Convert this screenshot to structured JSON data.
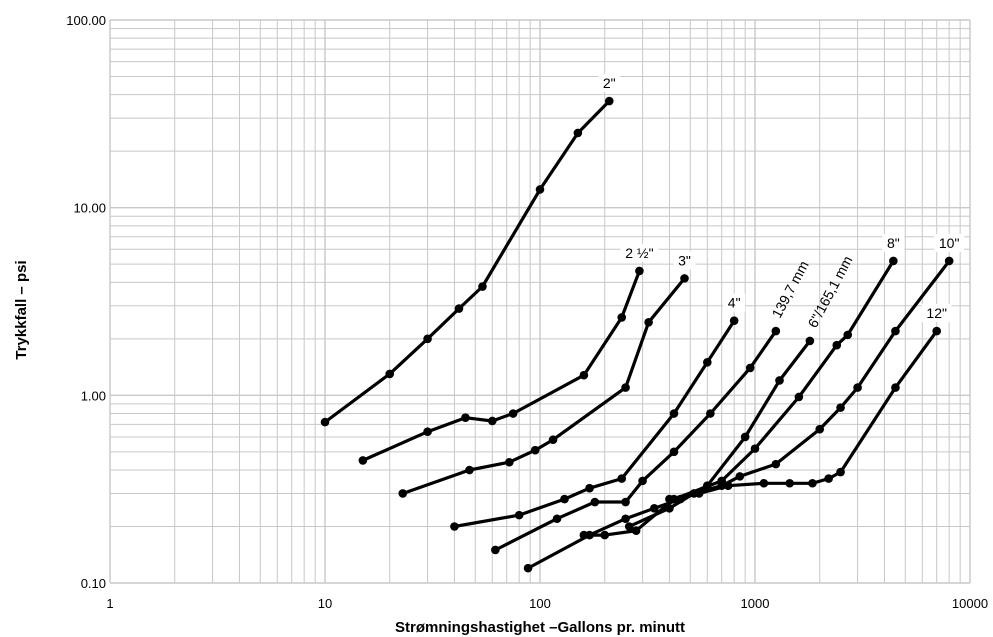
{
  "chart_data": {
    "type": "line",
    "title": "",
    "xlabel": "Strømningshastighet –Gallons pr. minutt",
    "ylabel": "Trykkfall – psi",
    "xscale": "log",
    "yscale": "log",
    "xlim": [
      1,
      10000
    ],
    "ylim": [
      0.1,
      100
    ],
    "xticks": [
      "1",
      "10",
      "100",
      "1000",
      "10000"
    ],
    "yticks": [
      "0.10",
      "1.00",
      "10.00",
      "100.00"
    ],
    "grid": true,
    "legend": "none",
    "colors": {
      "line": "#000000",
      "grid": "#c8c8c8"
    },
    "series": [
      {
        "name": "2\"",
        "x": [
          10,
          20,
          30,
          42,
          54,
          100,
          150,
          210
        ],
        "y": [
          0.72,
          1.3,
          2.0,
          2.9,
          3.8,
          12.5,
          25,
          37
        ]
      },
      {
        "name": "2 ½\"",
        "x": [
          15,
          30,
          45,
          60,
          75,
          160,
          240,
          290
        ],
        "y": [
          0.45,
          0.64,
          0.76,
          0.73,
          0.8,
          1.28,
          2.6,
          4.6
        ]
      },
      {
        "name": "3\"",
        "x": [
          23,
          47,
          72,
          95,
          115,
          250,
          320,
          470
        ],
        "y": [
          0.3,
          0.4,
          0.44,
          0.51,
          0.58,
          1.1,
          2.45,
          4.2
        ]
      },
      {
        "name": "4\"",
        "x": [
          40,
          80,
          130,
          170,
          240,
          420,
          600,
          800
        ],
        "y": [
          0.2,
          0.23,
          0.28,
          0.32,
          0.36,
          0.8,
          1.5,
          2.5
        ]
      },
      {
        "name": "139,7 mm",
        "x": [
          62,
          120,
          180,
          250,
          300,
          420,
          620,
          950,
          1250
        ],
        "y": [
          0.15,
          0.22,
          0.27,
          0.27,
          0.35,
          0.5,
          0.8,
          1.4,
          2.2
        ]
      },
      {
        "name": "6\"/165,1 mm",
        "x": [
          88,
          170,
          250,
          340,
          450,
          600,
          900,
          1300,
          1800
        ],
        "y": [
          0.12,
          0.18,
          0.22,
          0.25,
          0.28,
          0.33,
          0.6,
          1.2,
          1.95
        ]
      },
      {
        "name": "8\"",
        "x": [
          160,
          200,
          280,
          420,
          700,
          1000,
          1600,
          2400,
          2700,
          4400
        ],
        "y": [
          0.18,
          0.18,
          0.19,
          0.28,
          0.35,
          0.52,
          0.98,
          1.85,
          2.1,
          5.2
        ]
      },
      {
        "name": "10\"",
        "x": [
          260,
          400,
          520,
          700,
          850,
          1250,
          2000,
          2500,
          3000,
          4500,
          8000
        ],
        "y": [
          0.2,
          0.25,
          0.3,
          0.33,
          0.37,
          0.43,
          0.66,
          0.86,
          1.1,
          2.2,
          5.2
        ]
      },
      {
        "name": "12\"",
        "x": [
          400,
          550,
          750,
          1100,
          1450,
          1850,
          2200,
          2500,
          4500,
          7000
        ],
        "y": [
          0.28,
          0.3,
          0.33,
          0.34,
          0.34,
          0.34,
          0.36,
          0.39,
          1.1,
          2.2
        ]
      }
    ]
  }
}
